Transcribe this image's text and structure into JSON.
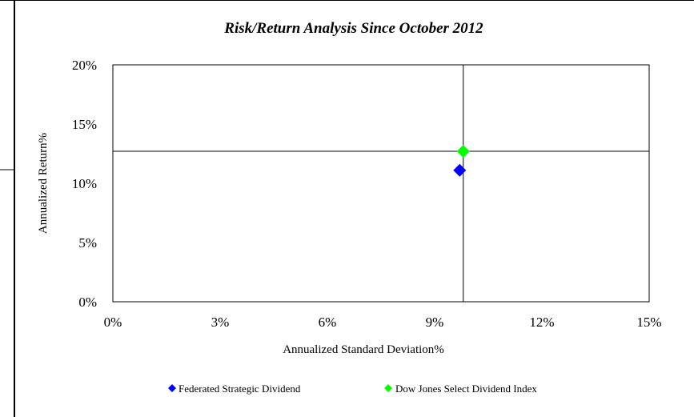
{
  "chart_data": {
    "type": "scatter",
    "title": "Risk/Return Analysis Since October 2012",
    "xlabel": "Annualized Standard Deviation%",
    "ylabel": "Annualized Return%",
    "xlim": [
      0,
      15
    ],
    "ylim": [
      0,
      20
    ],
    "x_ticks": [
      0,
      3,
      6,
      9,
      12,
      15
    ],
    "x_tick_labels": [
      "0%",
      "3%",
      "6%",
      "9%",
      "12%",
      "15%"
    ],
    "y_ticks": [
      0,
      5,
      10,
      15,
      20
    ],
    "y_tick_labels": [
      "0%",
      "5%",
      "10%",
      "15%",
      "20%"
    ],
    "reference_lines": {
      "x": 9.8,
      "y": 12.7
    },
    "grid": false,
    "legend_position": "bottom",
    "series": [
      {
        "name": "Federated Strategic Dividend",
        "color": "#0000ff",
        "marker": "diamond",
        "points": [
          {
            "x": 9.7,
            "y": 11.1
          }
        ]
      },
      {
        "name": "Dow Jones Select Dividend Index",
        "color": "#00ff00",
        "marker": "diamond",
        "points": [
          {
            "x": 9.8,
            "y": 12.7
          }
        ]
      }
    ]
  }
}
